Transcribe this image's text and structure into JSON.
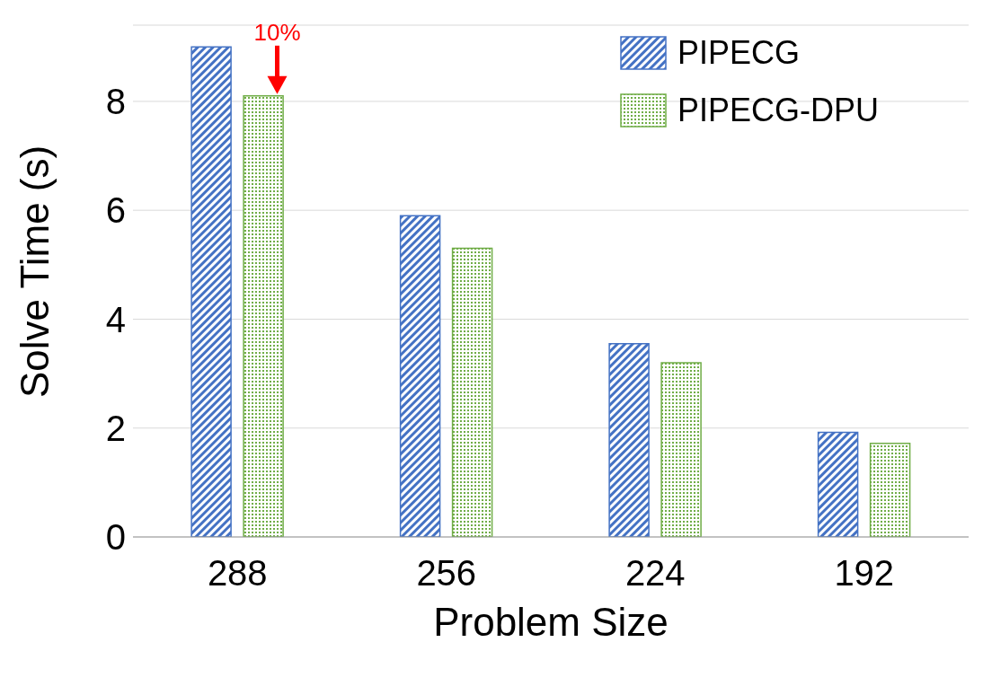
{
  "chart_data": {
    "type": "bar",
    "xlabel": "Problem Size",
    "ylabel": "Solve Time (s)",
    "categories": [
      "288",
      "256",
      "224",
      "192"
    ],
    "series": [
      {
        "name": "PIPECG",
        "color": "#4472c4",
        "values": [
          9.0,
          5.9,
          3.55,
          1.92
        ]
      },
      {
        "name": "PIPECG-DPU",
        "color": "#70ad47",
        "values": [
          8.1,
          5.3,
          3.2,
          1.72
        ]
      }
    ],
    "ylim": [
      0,
      9.4
    ],
    "yticks": [
      0,
      2,
      4,
      6,
      8
    ],
    "grid": "y",
    "legend": "top right",
    "annotations": [
      "10%"
    ]
  }
}
